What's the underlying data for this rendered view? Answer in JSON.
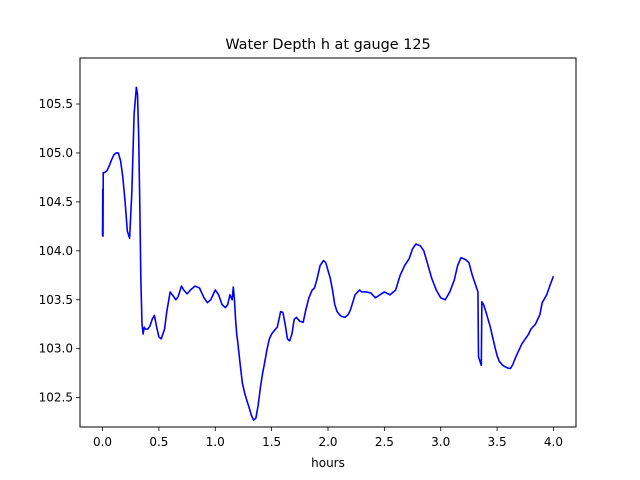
{
  "chart_data": {
    "type": "line",
    "title": "Water Depth h at gauge 125",
    "xlabel": "hours",
    "ylabel": "",
    "xlim": [
      -0.2,
      4.2
    ],
    "ylim": [
      102.2,
      105.97
    ],
    "xticks": [
      0.0,
      0.5,
      1.0,
      1.5,
      2.0,
      2.5,
      3.0,
      3.5,
      4.0
    ],
    "xtick_labels": [
      "0.0",
      "0.5",
      "1.0",
      "1.5",
      "2.0",
      "2.5",
      "3.0",
      "3.5",
      "4.0"
    ],
    "yticks": [
      102.5,
      103.0,
      103.5,
      104.0,
      104.5,
      105.0,
      105.5
    ],
    "ytick_labels": [
      "102.5",
      "103.0",
      "103.5",
      "104.0",
      "104.5",
      "105.0",
      "105.5"
    ],
    "grid": false,
    "legend": "none",
    "series": [
      {
        "color": "#0000ff",
        "x": [
          0.0,
          0.002,
          0.004,
          0.006,
          0.01,
          0.02,
          0.04,
          0.06,
          0.08,
          0.1,
          0.12,
          0.14,
          0.16,
          0.18,
          0.2,
          0.22,
          0.24,
          0.26,
          0.28,
          0.3,
          0.31,
          0.32,
          0.33,
          0.34,
          0.35,
          0.36,
          0.37,
          0.38,
          0.39,
          0.4,
          0.42,
          0.44,
          0.46,
          0.48,
          0.5,
          0.52,
          0.55,
          0.57,
          0.6,
          0.62,
          0.65,
          0.67,
          0.7,
          0.72,
          0.75,
          0.78,
          0.82,
          0.86,
          0.9,
          0.93,
          0.96,
          1.0,
          1.03,
          1.06,
          1.09,
          1.11,
          1.13,
          1.15,
          1.16,
          1.17,
          1.18,
          1.19,
          1.2,
          1.22,
          1.24,
          1.26,
          1.28,
          1.3,
          1.32,
          1.34,
          1.36,
          1.38,
          1.4,
          1.42,
          1.44,
          1.46,
          1.48,
          1.5,
          1.52,
          1.55,
          1.58,
          1.6,
          1.62,
          1.64,
          1.66,
          1.68,
          1.7,
          1.72,
          1.75,
          1.78,
          1.8,
          1.83,
          1.86,
          1.88,
          1.9,
          1.93,
          1.96,
          1.98,
          2.0,
          2.02,
          2.04,
          2.06,
          2.08,
          2.1,
          2.12,
          2.15,
          2.18,
          2.2,
          2.24,
          2.28,
          2.3,
          2.34,
          2.38,
          2.42,
          2.46,
          2.5,
          2.55,
          2.6,
          2.64,
          2.68,
          2.72,
          2.75,
          2.78,
          2.82,
          2.85,
          2.88,
          2.92,
          2.96,
          3.0,
          3.04,
          3.08,
          3.12,
          3.15,
          3.18,
          3.22,
          3.25,
          3.28,
          3.31,
          3.33,
          3.335,
          3.34,
          3.36,
          3.365,
          3.38,
          3.4,
          3.42,
          3.44,
          3.46,
          3.48,
          3.5,
          3.52,
          3.55,
          3.58,
          3.6,
          3.62,
          3.64,
          3.66,
          3.68,
          3.7,
          3.72,
          3.75,
          3.78,
          3.8,
          3.84,
          3.88,
          3.9,
          3.94,
          3.97,
          4.0
        ],
        "y": [
          104.15,
          104.63,
          104.15,
          104.8,
          104.8,
          104.8,
          104.82,
          104.87,
          104.93,
          104.98,
          105.0,
          105.0,
          104.92,
          104.75,
          104.5,
          104.2,
          104.13,
          104.6,
          105.4,
          105.67,
          105.6,
          105.2,
          104.5,
          103.7,
          103.25,
          103.15,
          103.22,
          103.2,
          103.2,
          103.2,
          103.23,
          103.3,
          103.34,
          103.22,
          103.12,
          103.1,
          103.2,
          103.38,
          103.58,
          103.55,
          103.5,
          103.53,
          103.64,
          103.6,
          103.56,
          103.6,
          103.64,
          103.62,
          103.52,
          103.47,
          103.5,
          103.6,
          103.55,
          103.45,
          103.42,
          103.45,
          103.55,
          103.5,
          103.63,
          103.5,
          103.3,
          103.15,
          103.06,
          102.85,
          102.65,
          102.55,
          102.47,
          102.4,
          102.32,
          102.27,
          102.29,
          102.42,
          102.6,
          102.75,
          102.87,
          103.0,
          103.1,
          103.15,
          103.18,
          103.22,
          103.38,
          103.37,
          103.25,
          103.1,
          103.08,
          103.15,
          103.3,
          103.32,
          103.28,
          103.27,
          103.38,
          103.52,
          103.6,
          103.62,
          103.7,
          103.85,
          103.9,
          103.88,
          103.8,
          103.72,
          103.6,
          103.45,
          103.38,
          103.35,
          103.33,
          103.32,
          103.35,
          103.4,
          103.55,
          103.6,
          103.58,
          103.58,
          103.57,
          103.52,
          103.55,
          103.58,
          103.55,
          103.6,
          103.75,
          103.85,
          103.92,
          104.02,
          104.07,
          104.05,
          104.0,
          103.88,
          103.72,
          103.6,
          103.52,
          103.5,
          103.58,
          103.7,
          103.85,
          103.93,
          103.91,
          103.88,
          103.75,
          103.65,
          103.58,
          102.92,
          102.9,
          102.83,
          103.48,
          103.45,
          103.38,
          103.3,
          103.22,
          103.12,
          103.02,
          102.93,
          102.87,
          102.83,
          102.81,
          102.8,
          102.8,
          102.84,
          102.9,
          102.95,
          103.0,
          103.05,
          103.1,
          103.15,
          103.2,
          103.25,
          103.35,
          103.47,
          103.55,
          103.65,
          103.74
        ]
      }
    ]
  }
}
